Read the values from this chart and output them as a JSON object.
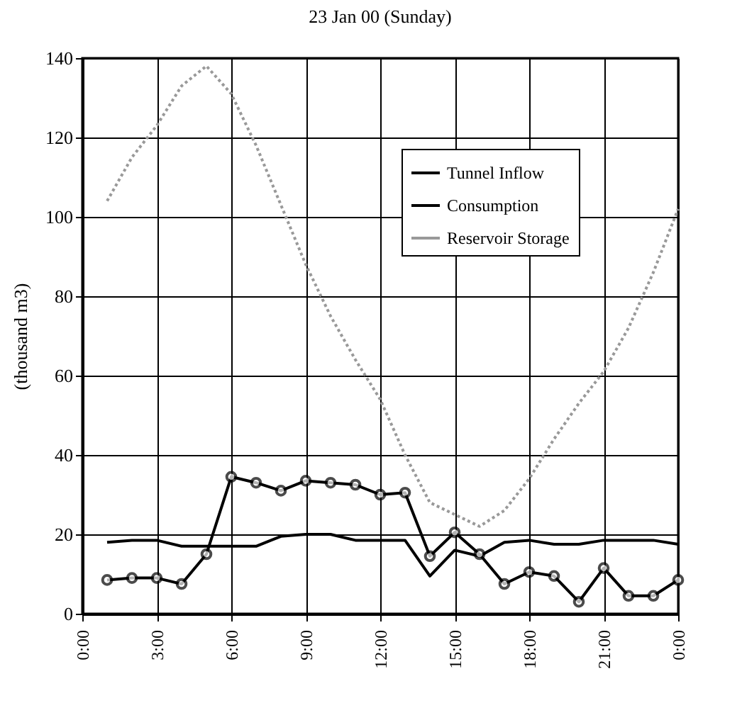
{
  "chart_data": {
    "type": "line",
    "title": "23 Jan 00 (Sunday)",
    "ylabel": "(thousand m3)",
    "x": [
      1,
      2,
      3,
      4,
      5,
      6,
      7,
      8,
      9,
      10,
      11,
      12,
      13,
      14,
      15,
      16,
      17,
      18,
      19,
      20,
      21,
      22,
      23,
      24
    ],
    "series": [
      {
        "name": "Tunnel Inflow",
        "color": "#000000",
        "line_style": "solid",
        "values": [
          18,
          18.5,
          18.5,
          17,
          17,
          17,
          17,
          19.5,
          20,
          20,
          18.5,
          18.5,
          18.5,
          9.5,
          16,
          14.5,
          18,
          18.5,
          17.5,
          17.5,
          18.5,
          18.5,
          18.5,
          17.5
        ]
      },
      {
        "name": "Consumption",
        "color": "#000000",
        "line_style": "solid",
        "marker": "circle",
        "values": [
          8.5,
          9,
          9,
          7.5,
          15,
          34.5,
          33,
          31,
          33.5,
          33,
          32.5,
          30,
          30.5,
          14.5,
          20.5,
          15,
          7.5,
          10.5,
          9.5,
          3,
          11.5,
          4.5,
          4.5,
          8.5
        ]
      },
      {
        "name": "Reservoir Storage",
        "color": "#999999",
        "line_style": "dotted",
        "values": [
          104,
          115,
          123,
          133,
          138,
          131,
          118,
          103,
          88,
          75,
          64,
          54,
          40,
          28,
          25,
          22,
          26,
          34,
          44,
          53,
          61,
          72,
          86,
          102
        ]
      }
    ],
    "xlim": [
      0,
      24
    ],
    "xticks": [
      {
        "value": 0,
        "label": "0:00"
      },
      {
        "value": 3,
        "label": "3:00"
      },
      {
        "value": 6,
        "label": "6:00"
      },
      {
        "value": 9,
        "label": "9:00"
      },
      {
        "value": 12,
        "label": "12:00"
      },
      {
        "value": 15,
        "label": "15:00"
      },
      {
        "value": 18,
        "label": "18:00"
      },
      {
        "value": 21,
        "label": "21:00"
      },
      {
        "value": 24,
        "label": "0:00"
      }
    ],
    "ylim": [
      0,
      140
    ],
    "yticks": [
      0,
      20,
      40,
      60,
      80,
      100,
      120,
      140
    ],
    "grid": true,
    "legend": "top right"
  }
}
